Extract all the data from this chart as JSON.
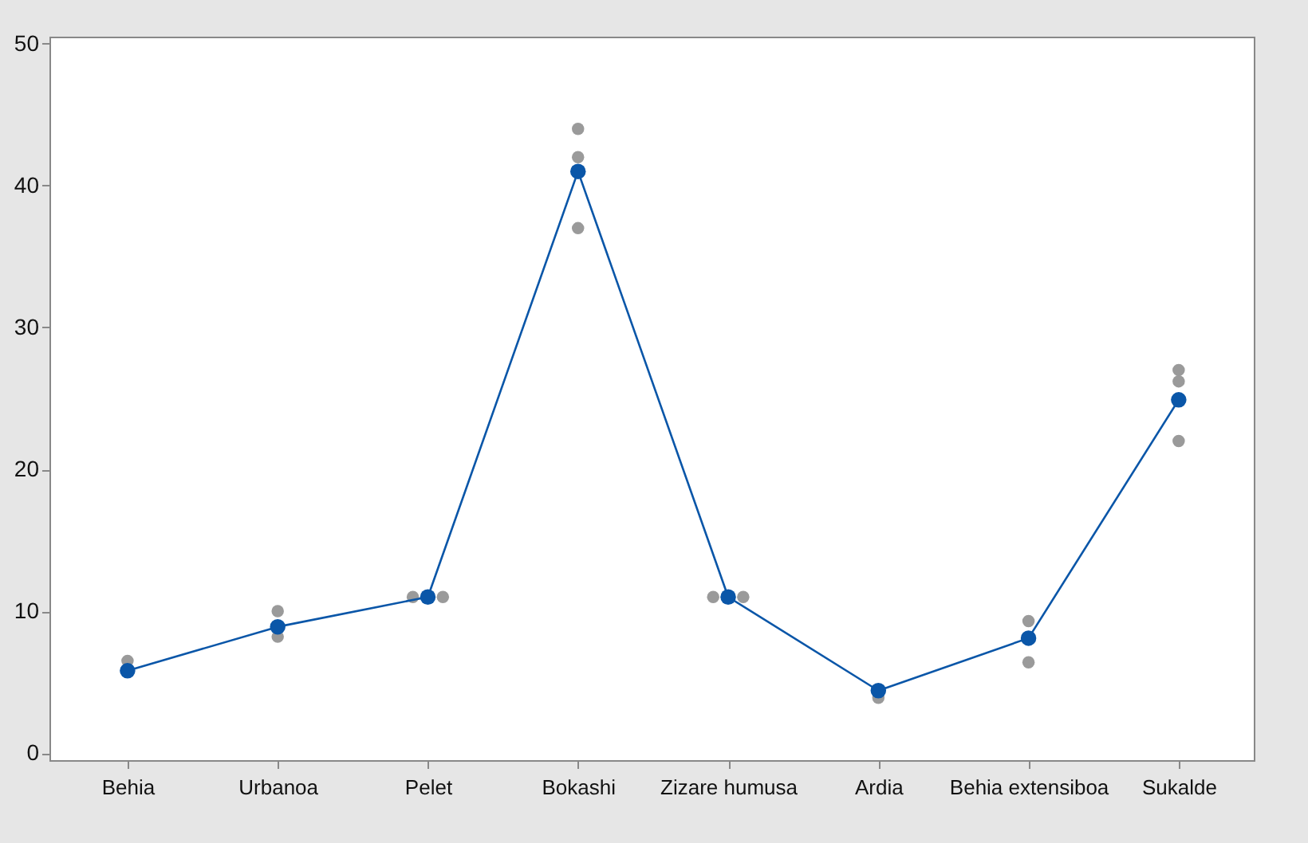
{
  "chart_data": {
    "type": "line",
    "categories": [
      "Behia",
      "Urbanoa",
      "Pelet",
      "Bokashi",
      "Zizare humusa",
      "Ardia",
      "Behia extensiboa",
      "Sukalde"
    ],
    "ylim": [
      -0.5,
      50.5
    ],
    "yticks": [
      0,
      10,
      20,
      30,
      40,
      50
    ],
    "grid": false,
    "marker": "circle",
    "line_style": "solid",
    "series": [
      {
        "type": "scatter",
        "color": "#9a9a9a",
        "x": [
          "Behia",
          "Urbanoa",
          "Urbanoa",
          "Pelet",
          "Pelet",
          "Bokashi",
          "Bokashi",
          "Bokashi",
          "Zizare humusa",
          "Zizare humusa",
          "Ardia",
          "Behia extensiboa",
          "Behia extensiboa",
          "Sukalde",
          "Sukalde",
          "Sukalde"
        ],
        "values": [
          6.5,
          10,
          8.2,
          11,
          11,
          44,
          42,
          37,
          11,
          11,
          3.9,
          9.3,
          6.4,
          27,
          26.2,
          22
        ]
      },
      {
        "color": "#0a56a8",
        "values": [
          5.8,
          8.9,
          11,
          41,
          11,
          4.4,
          8.1,
          24.9
        ]
      }
    ]
  }
}
